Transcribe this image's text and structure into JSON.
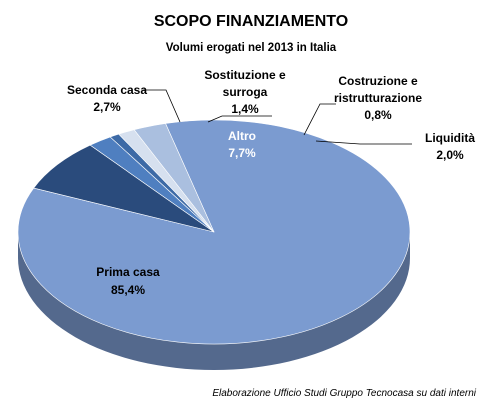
{
  "chart_data": {
    "type": "pie",
    "title": "SCOPO FINANZIAMENTO",
    "subtitle": "Volumi erogati nel  2013 in Italia",
    "slices": [
      {
        "label": "Prima casa",
        "value": 85.4,
        "value_label": "85,4%",
        "color": "#7b9bd0"
      },
      {
        "label": "Altro",
        "value": 7.7,
        "value_label": "7,7%",
        "color": "#2a4b7c"
      },
      {
        "label": "Liquidità",
        "value": 2.0,
        "value_label": "2,0%",
        "color": "#4f7fc0"
      },
      {
        "label": "Costruzione e ristrutturazione",
        "value": 0.8,
        "value_label": "0,8%",
        "color": "#3d6aa6"
      },
      {
        "label": "Sostituzione e surroga",
        "value": 1.4,
        "value_label": "1,4%",
        "color": "#d6e0ef"
      },
      {
        "label": "Seconda casa",
        "value": 2.7,
        "value_label": "2,7%",
        "color": "#aabfdf"
      }
    ],
    "legend": "none",
    "source": "Elaborazione Ufficio Studi Gruppo Tecnocasa su dati interni"
  }
}
